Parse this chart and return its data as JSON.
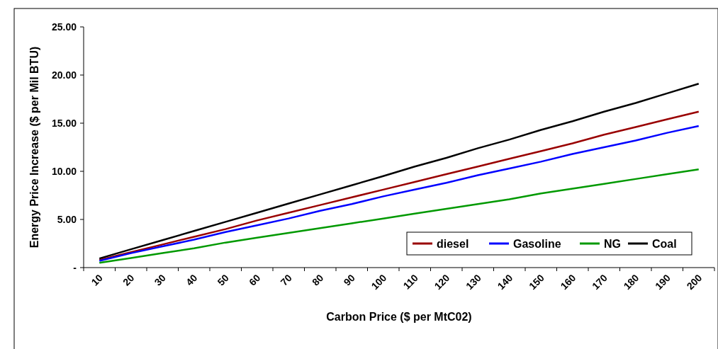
{
  "chart_data": {
    "type": "line",
    "xlabel": "Carbon Price ($ per MtC02)",
    "ylabel": "Energy Price Increase ($ per Mil BTU)",
    "categories": [
      "10",
      "20",
      "30",
      "40",
      "50",
      "60",
      "70",
      "80",
      "90",
      "100",
      "110",
      "120",
      "130",
      "140",
      "150",
      "160",
      "170",
      "180",
      "190",
      "200"
    ],
    "series": [
      {
        "name": "diesel",
        "color": "#990000",
        "values": [
          0.8,
          1.6,
          2.4,
          3.2,
          4.0,
          4.9,
          5.7,
          6.5,
          7.3,
          8.1,
          8.9,
          9.7,
          10.5,
          11.3,
          12.1,
          12.9,
          13.8,
          14.6,
          15.4,
          16.2
        ]
      },
      {
        "name": "Gasoline",
        "color": "#0000ff",
        "values": [
          0.7,
          1.5,
          2.2,
          2.9,
          3.7,
          4.4,
          5.1,
          5.9,
          6.6,
          7.4,
          8.1,
          8.8,
          9.6,
          10.3,
          11.0,
          11.8,
          12.5,
          13.2,
          14.0,
          14.7
        ]
      },
      {
        "name": "NG",
        "color": "#009900",
        "values": [
          0.5,
          1.0,
          1.5,
          2.0,
          2.6,
          3.1,
          3.6,
          4.1,
          4.6,
          5.1,
          5.6,
          6.1,
          6.6,
          7.1,
          7.7,
          8.2,
          8.7,
          9.2,
          9.7,
          10.2
        ]
      },
      {
        "name": "Coal",
        "color": "#000000",
        "values": [
          0.95,
          1.9,
          2.85,
          3.8,
          4.75,
          5.7,
          6.65,
          7.6,
          8.55,
          9.5,
          10.5,
          11.4,
          12.4,
          13.3,
          14.3,
          15.2,
          16.2,
          17.1,
          18.1,
          19.1
        ]
      }
    ],
    "ylim": [
      0,
      25
    ],
    "yticks": [
      {
        "value": 0,
        "label": "-"
      },
      {
        "value": 5,
        "label": "5.00"
      },
      {
        "value": 10,
        "label": "10.00"
      },
      {
        "value": 15,
        "label": "15.00"
      },
      {
        "value": 20,
        "label": "20.00"
      },
      {
        "value": 25,
        "label": "25.00"
      }
    ],
    "grid": false,
    "legend": "bottom right",
    "marker": "none",
    "line_style": "solid"
  }
}
